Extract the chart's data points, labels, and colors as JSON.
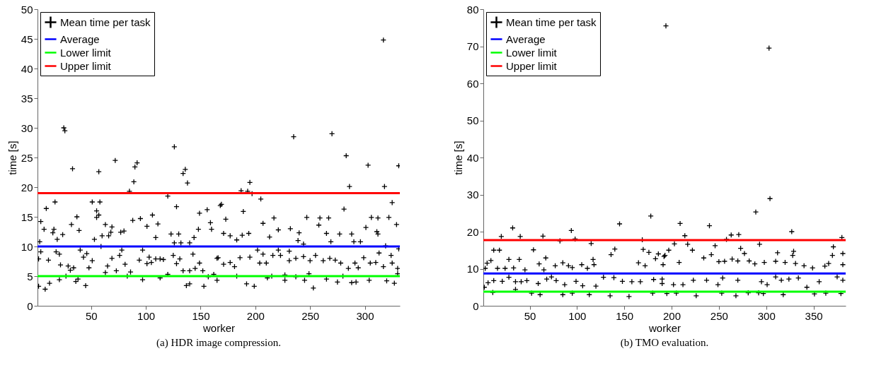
{
  "chart_data": [
    {
      "type": "scatter",
      "xlabel": "worker",
      "ylabel": "time [s]",
      "xlim": [
        1,
        332
      ],
      "ylim": [
        0,
        50
      ],
      "xticks": [
        50,
        100,
        150,
        200,
        250,
        300
      ],
      "yticks": [
        0,
        5,
        10,
        15,
        20,
        25,
        30,
        35,
        40,
        45,
        50
      ],
      "grid": false,
      "legend": "top left",
      "annotations": [
        "(a) HDR image compression."
      ],
      "series": [
        {
          "name": "Mean time per task",
          "type": "scatter",
          "marker": "cross",
          "color": "#000000",
          "x": [
            25,
            26,
            33,
            57,
            72,
            90,
            92,
            89,
            85,
            126,
            136,
            134,
            138,
            120,
            128,
            17,
            9,
            4,
            7,
            3,
            2,
            2,
            8,
            12,
            4,
            11,
            16,
            15,
            19,
            24,
            18,
            21,
            22,
            29,
            31,
            34,
            32,
            37,
            39,
            27,
            21,
            36,
            38,
            45,
            40,
            43,
            46,
            48,
            51,
            51,
            58,
            55,
            57,
            55,
            53,
            59,
            60,
            63,
            66,
            68,
            69,
            65,
            69,
            63,
            73,
            76,
            78,
            77,
            80,
            83,
            88,
            81,
            86,
            95,
            101,
            106,
            111,
            97,
            103,
            101,
            105,
            97,
            94,
            109,
            109,
            113,
            116,
            113,
            120,
            123,
            130,
            126,
            132,
            140,
            144,
            148,
            149,
            156,
            159,
            160,
            125,
            131,
            128,
            134,
            140,
            145,
            152,
            137,
            140,
            153,
            143,
            149,
            157,
            162,
            168,
            317,
            235,
            270,
            283,
            303,
            331,
            318,
            286,
            195,
            187,
            193,
            197,
            205,
            169,
            189,
            281,
            325,
            329,
            173,
            217,
            247,
            259,
            267,
            306,
            312,
            322,
            207,
            221,
            232,
            240,
            258,
            265,
            277,
            288,
            301,
            311,
            171,
            177,
            183,
            188,
            194,
            213,
            239,
            244,
            269,
            290,
            296,
            312,
            319,
            331,
            165,
            166,
            171,
            177,
            181,
            186,
            195,
            204,
            210,
            202,
            207,
            216,
            223,
            231,
            221,
            231,
            237,
            244,
            250,
            255,
            262,
            268,
            273,
            278,
            285,
            291,
            294,
            299,
            305,
            310,
            313,
            317,
            324,
            325,
            330,
            165,
            192,
            199,
            211,
            227,
            237,
            245,
            253,
            265,
            275,
            288,
            292,
            304,
            320,
            327,
            249,
            227,
            183,
            215,
            280,
            330
          ],
          "values": [
            30.0,
            29.5,
            23.1,
            22.6,
            24.5,
            23.4,
            24.1,
            20.9,
            19.3,
            26.8,
            23.0,
            22.3,
            20.7,
            18.5,
            16.7,
            17.5,
            16.4,
            14.2,
            12.9,
            10.8,
            7.9,
            3.3,
            2.8,
            3.8,
            9.1,
            7.7,
            12.9,
            12.3,
            11.2,
            12.0,
            9.1,
            8.7,
            6.9,
            6.7,
            6.0,
            6.4,
            13.7,
            15.0,
            12.7,
            5.0,
            4.4,
            4.1,
            4.5,
            3.4,
            9.4,
            8.2,
            8.8,
            6.4,
            7.6,
            17.5,
            17.5,
            16.0,
            15.3,
            14.9,
            11.2,
            10.0,
            11.8,
            13.7,
            11.8,
            12.4,
            13.3,
            6.7,
            8.0,
            5.6,
            5.9,
            8.5,
            9.4,
            12.4,
            12.6,
            5.0,
            14.4,
            7.0,
            5.7,
            14.7,
            13.4,
            15.3,
            13.8,
            9.4,
            8.2,
            7.1,
            7.3,
            4.4,
            7.7,
            11.5,
            7.9,
            7.9,
            7.8,
            4.7,
            5.3,
            12.1,
            12.1,
            10.6,
            10.6,
            10.6,
            11.5,
            12.9,
            15.6,
            16.2,
            14.0,
            12.9,
            8.5,
            7.9,
            7.1,
            5.9,
            5.9,
            6.3,
            5.9,
            3.4,
            3.7,
            3.3,
            8.7,
            7.2,
            4.9,
            5.3,
            16.9,
            44.8,
            28.5,
            29.0,
            25.3,
            23.7,
            23.6,
            20.1,
            20.1,
            20.8,
            19.4,
            19.3,
            18.9,
            18.0,
            17.1,
            15.9,
            16.3,
            17.4,
            13.7,
            14.6,
            14.8,
            14.9,
            14.8,
            14.8,
            14.9,
            14.8,
            14.9,
            13.9,
            12.8,
            13.0,
            12.3,
            13.6,
            12.2,
            12.1,
            12.1,
            13.2,
            12.5,
            12.2,
            11.8,
            11.1,
            11.9,
            12.2,
            11.6,
            11.0,
            10.4,
            10.8,
            10.8,
            10.8,
            12.1,
            10.1,
            9.6,
            8.0,
            8.1,
            7.0,
            7.3,
            6.6,
            8.1,
            8.2,
            7.2,
            7.2,
            9.4,
            8.7,
            8.5,
            8.5,
            9.2,
            9.4,
            7.6,
            8.0,
            8.3,
            7.6,
            8.5,
            7.6,
            8.0,
            7.7,
            7.2,
            6.3,
            7.2,
            6.4,
            8.1,
            7.2,
            7.3,
            8.9,
            6.6,
            8.5,
            7.2,
            6.3,
            4.3,
            3.7,
            3.3,
            4.7,
            4.3,
            4.9,
            4.3,
            3.0,
            4.5,
            4.0,
            3.9,
            4.0,
            4.3,
            4.2,
            3.8,
            5.4,
            5.2,
            5.0,
            5.0,
            5.0,
            5.4
          ]
        },
        {
          "name": "Average",
          "type": "line",
          "marker": "none",
          "color": "#0000ff",
          "x": [
            1,
            332
          ],
          "values": [
            10,
            10
          ]
        },
        {
          "name": "Lower limit",
          "type": "line",
          "marker": "none",
          "color": "#00ff00",
          "x": [
            1,
            332
          ],
          "values": [
            5,
            5
          ]
        },
        {
          "name": "Upper limit",
          "type": "line",
          "marker": "none",
          "color": "#ff0000",
          "x": [
            1,
            332
          ],
          "values": [
            19,
            19
          ]
        }
      ]
    },
    {
      "type": "scatter",
      "xlabel": "worker",
      "ylabel": "time [s]",
      "xlim": [
        1,
        384
      ],
      "ylim": [
        0,
        80
      ],
      "xticks": [
        50,
        100,
        150,
        200,
        250,
        300,
        350
      ],
      "yticks": [
        0,
        10,
        20,
        30,
        40,
        50,
        60,
        70,
        80
      ],
      "grid": false,
      "legend": "top left",
      "annotations": [
        "(b) TMO evaluation."
      ],
      "series": [
        {
          "name": "Mean time per task",
          "type": "scatter",
          "marker": "cross",
          "color": "#000000",
          "x": [
            32,
            20,
            40,
            64,
            94,
            98,
            82,
            115,
            145,
            178,
            169,
            12,
            18,
            54,
            9,
            5,
            28,
            39,
            67,
            3,
            16,
            24,
            33,
            45,
            60,
            65,
            77,
            85,
            91,
            95,
            105,
            111,
            118,
            165,
            172,
            170,
            176,
            136,
            140,
            117,
            183,
            186,
            192,
            2,
            6,
            12,
            21,
            28,
            35,
            41,
            47,
            59,
            68,
            73,
            78,
            87,
            99,
            106,
            120,
            128,
            139,
            148,
            158,
            167,
            181,
            190,
            11,
            35,
            52,
            61,
            85,
            95,
            113,
            135,
            155,
            180,
            194,
            303,
            304,
            289,
            209,
            240,
            327,
            214,
            263,
            271,
            380,
            258,
            293,
            203,
            217,
            222,
            246,
            197,
            193,
            371,
            273,
            277,
            312,
            329,
            328,
            381,
            370,
            191,
            208,
            242,
            234,
            250,
            256,
            264,
            270,
            282,
            288,
            298,
            310,
            320,
            331,
            340,
            349,
            362,
            366,
            381,
            190,
            202,
            212,
            223,
            237,
            249,
            254,
            270,
            295,
            301,
            310,
            316,
            324,
            334,
            343,
            356,
            375,
            381,
            195,
            205,
            226,
            253,
            268,
            281,
            292,
            297,
            318,
            351,
            363,
            379
          ],
          "values": [
            21.0,
            18.7,
            18.7,
            18.8,
            20.3,
            18.0,
            17.5,
            16.8,
            22.1,
            24.2,
            17.8,
            15.0,
            15.0,
            15.1,
            12.2,
            11.5,
            12.5,
            12.5,
            12.9,
            10.1,
            10.1,
            10.1,
            10.2,
            9.7,
            11.3,
            9.7,
            10.8,
            11.6,
            10.8,
            10.3,
            11.1,
            10.1,
            11.1,
            11.6,
            10.8,
            15.2,
            14.4,
            13.8,
            15.3,
            12.5,
            12.7,
            14.0,
            13.3,
            5.0,
            6.2,
            6.8,
            6.6,
            7.7,
            6.5,
            6.5,
            6.8,
            6.0,
            7.2,
            7.8,
            6.8,
            5.7,
            6.6,
            5.4,
            5.3,
            7.7,
            7.6,
            6.6,
            6.5,
            6.5,
            7.1,
            6.0,
            3.6,
            4.4,
            3.4,
            3.0,
            3.0,
            3.4,
            3.0,
            2.7,
            2.5,
            3.4,
            75.5,
            69.5,
            28.9,
            25.3,
            22.2,
            21.6,
            20.0,
            18.9,
            19.1,
            19.2,
            18.4,
            17.9,
            16.6,
            16.7,
            16.6,
            15.0,
            16.2,
            15.0,
            13.6,
            15.9,
            15.5,
            14.1,
            14.3,
            14.7,
            13.6,
            14.1,
            13.6,
            11.1,
            11.7,
            13.8,
            12.9,
            11.9,
            12.0,
            12.6,
            12.1,
            12.1,
            11.3,
            11.7,
            12.0,
            11.7,
            11.4,
            10.8,
            10.2,
            10.7,
            11.4,
            11.1,
            7.2,
            5.7,
            5.7,
            6.9,
            6.9,
            5.7,
            7.5,
            6.9,
            6.5,
            5.7,
            7.8,
            6.9,
            7.2,
            7.5,
            5.0,
            6.5,
            7.8,
            6.9,
            3.3,
            3.4,
            2.7,
            3.4,
            2.7,
            3.5,
            3.5,
            3.3,
            3.0,
            3.2,
            3.4,
            3.3
          ]
        },
        {
          "name": "Average",
          "type": "line",
          "marker": "none",
          "color": "#0000ff",
          "x": [
            1,
            384
          ],
          "values": [
            8.7,
            8.7
          ]
        },
        {
          "name": "Lower limit",
          "type": "line",
          "marker": "none",
          "color": "#00ff00",
          "x": [
            1,
            384
          ],
          "values": [
            3.8,
            3.8
          ]
        },
        {
          "name": "Upper limit",
          "type": "line",
          "marker": "none",
          "color": "#ff0000",
          "x": [
            1,
            384
          ],
          "values": [
            17.7,
            17.7
          ]
        }
      ]
    }
  ]
}
